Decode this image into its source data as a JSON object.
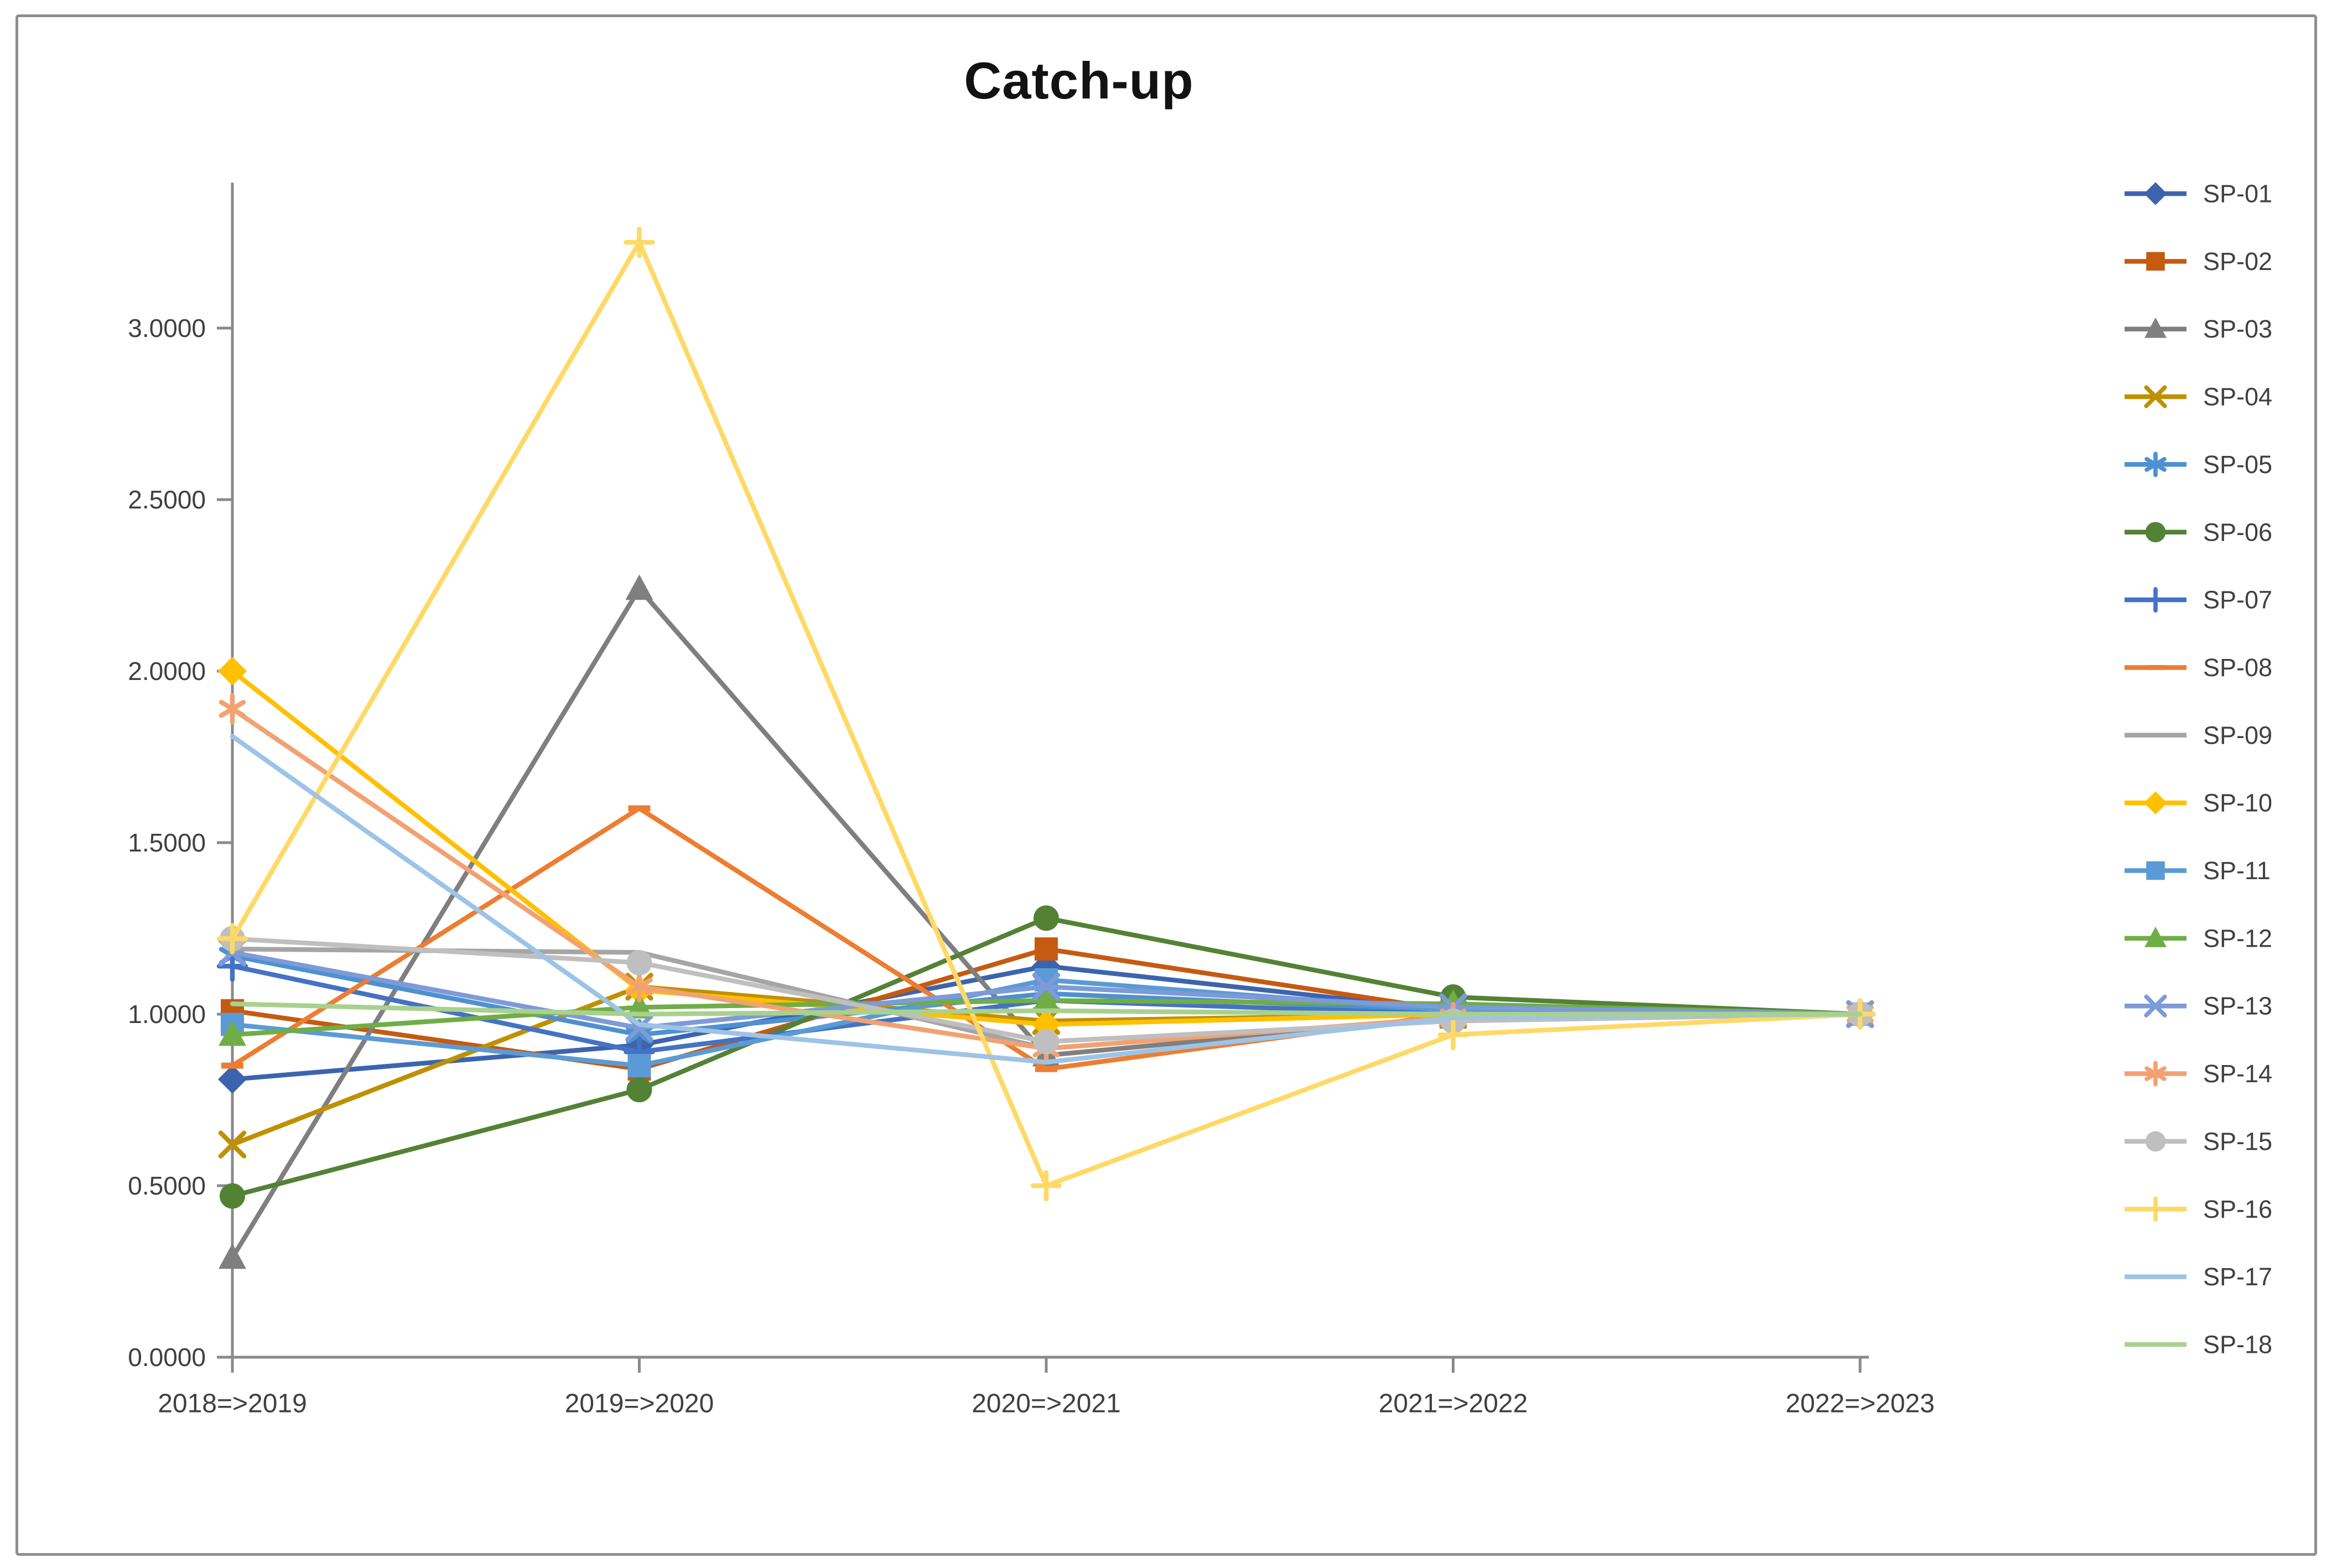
{
  "window": {
    "background": "#ffffff",
    "frame_border_color": "#8f8f8f"
  },
  "title": "Catch-up",
  "chart_data": {
    "type": "line",
    "title": "Catch-up",
    "categories": [
      "2018=>2019",
      "2019=>2020",
      "2020=>2021",
      "2021=>2022",
      "2022=>2023"
    ],
    "y_tick_labels": [
      "0.0000",
      "0.5000",
      "1.0000",
      "1.5000",
      "2.0000",
      "2.5000",
      "3.0000"
    ],
    "y_tick_values": [
      0,
      0.5,
      1.0,
      1.5,
      2.0,
      2.5,
      3.0
    ],
    "ylim": [
      0,
      3.42
    ],
    "grid": false,
    "legend_position": "right",
    "axis_color": "#8a8a8a",
    "text_color": "#404040",
    "series": [
      {
        "name": "SP-01",
        "color": "#3C64AE",
        "marker": "diamond",
        "values": [
          0.81,
          0.91,
          1.14,
          1.01,
          1.0
        ]
      },
      {
        "name": "SP-02",
        "color": "#C55A11",
        "marker": "square",
        "values": [
          1.01,
          0.84,
          1.19,
          1.01,
          1.0
        ]
      },
      {
        "name": "SP-03",
        "color": "#7F7F7F",
        "marker": "triangle",
        "values": [
          0.29,
          2.24,
          0.88,
          0.99,
          1.0
        ]
      },
      {
        "name": "SP-04",
        "color": "#BF9000",
        "marker": "x",
        "values": [
          0.62,
          1.08,
          0.98,
          1.0,
          1.0
        ]
      },
      {
        "name": "SP-05",
        "color": "#4E91D0",
        "marker": "asterisk",
        "values": [
          1.17,
          0.94,
          1.06,
          1.01,
          1.0
        ]
      },
      {
        "name": "SP-06",
        "color": "#548235",
        "marker": "circle",
        "values": [
          0.47,
          0.78,
          1.28,
          1.05,
          1.0
        ]
      },
      {
        "name": "SP-07",
        "color": "#4472C4",
        "marker": "plus",
        "values": [
          1.14,
          0.89,
          1.04,
          1.0,
          1.0
        ]
      },
      {
        "name": "SP-08",
        "color": "#ED7D31",
        "marker": "dash",
        "values": [
          0.85,
          1.6,
          0.84,
          1.0,
          1.0
        ]
      },
      {
        "name": "SP-09",
        "color": "#A5A5A5",
        "marker": "none",
        "values": [
          1.19,
          1.18,
          0.9,
          0.99,
          1.0
        ]
      },
      {
        "name": "SP-10",
        "color": "#FFC000",
        "marker": "diamond",
        "values": [
          2.0,
          1.07,
          0.97,
          1.0,
          1.0
        ]
      },
      {
        "name": "SP-11",
        "color": "#5B9BD5",
        "marker": "square",
        "values": [
          0.97,
          0.85,
          1.1,
          1.01,
          1.0
        ]
      },
      {
        "name": "SP-12",
        "color": "#70AD47",
        "marker": "triangle",
        "values": [
          0.94,
          1.02,
          1.04,
          1.03,
          1.0
        ]
      },
      {
        "name": "SP-13",
        "color": "#7D9AD9",
        "marker": "x",
        "values": [
          1.18,
          0.96,
          1.08,
          1.02,
          1.0
        ]
      },
      {
        "name": "SP-14",
        "color": "#F2A173",
        "marker": "asterisk",
        "values": [
          1.89,
          1.08,
          0.9,
          0.99,
          1.0
        ]
      },
      {
        "name": "SP-15",
        "color": "#BFBFBF",
        "marker": "circle",
        "values": [
          1.22,
          1.15,
          0.92,
          0.98,
          1.0
        ]
      },
      {
        "name": "SP-16",
        "color": "#FFD966",
        "marker": "plus",
        "values": [
          1.22,
          3.25,
          0.5,
          0.94,
          1.0
        ]
      },
      {
        "name": "SP-17",
        "color": "#9DC3E6",
        "marker": "none",
        "values": [
          1.81,
          0.97,
          0.86,
          0.99,
          1.0
        ]
      },
      {
        "name": "SP-18",
        "color": "#A9D18E",
        "marker": "none",
        "values": [
          1.03,
          1.0,
          1.01,
          1.0,
          1.0
        ]
      }
    ]
  }
}
